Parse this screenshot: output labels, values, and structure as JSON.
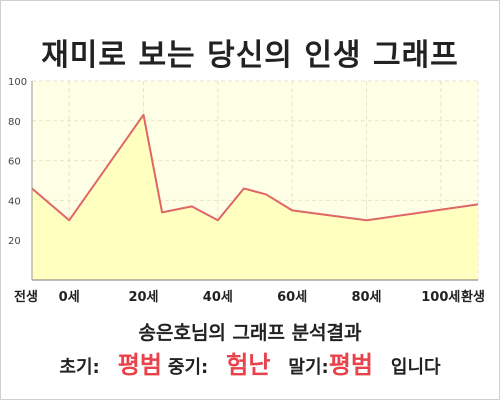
{
  "title": "재미로 보는 당신의 인생 그래프",
  "chart_data": {
    "type": "area",
    "x_labels": [
      "전생",
      "0세",
      "20세",
      "40세",
      "60세",
      "80세",
      "100세",
      "환생"
    ],
    "y_ticks": [
      "20",
      "40",
      "60",
      "80",
      "100"
    ],
    "ylim": [
      0,
      100
    ],
    "points": [
      {
        "x": -10,
        "y": 46
      },
      {
        "x": 0,
        "y": 30
      },
      {
        "x": 20,
        "y": 83
      },
      {
        "x": 25,
        "y": 34
      },
      {
        "x": 33,
        "y": 37
      },
      {
        "x": 40,
        "y": 30
      },
      {
        "x": 47,
        "y": 46
      },
      {
        "x": 53,
        "y": 43
      },
      {
        "x": 60,
        "y": 35
      },
      {
        "x": 80,
        "y": 30
      },
      {
        "x": 110,
        "y": 38
      }
    ],
    "grid": true,
    "line_color": "#e06666",
    "fill_color": "#ffffbf",
    "plot_bg": "#ffffe6"
  },
  "summary": "송은호님의 그래프 분석결과",
  "results": {
    "early_label": "초기:",
    "early_value": "평범",
    "mid_label": "중기:",
    "mid_value": "험난",
    "late_label": "말기:",
    "late_value": "평범",
    "suffix": "입니다"
  }
}
